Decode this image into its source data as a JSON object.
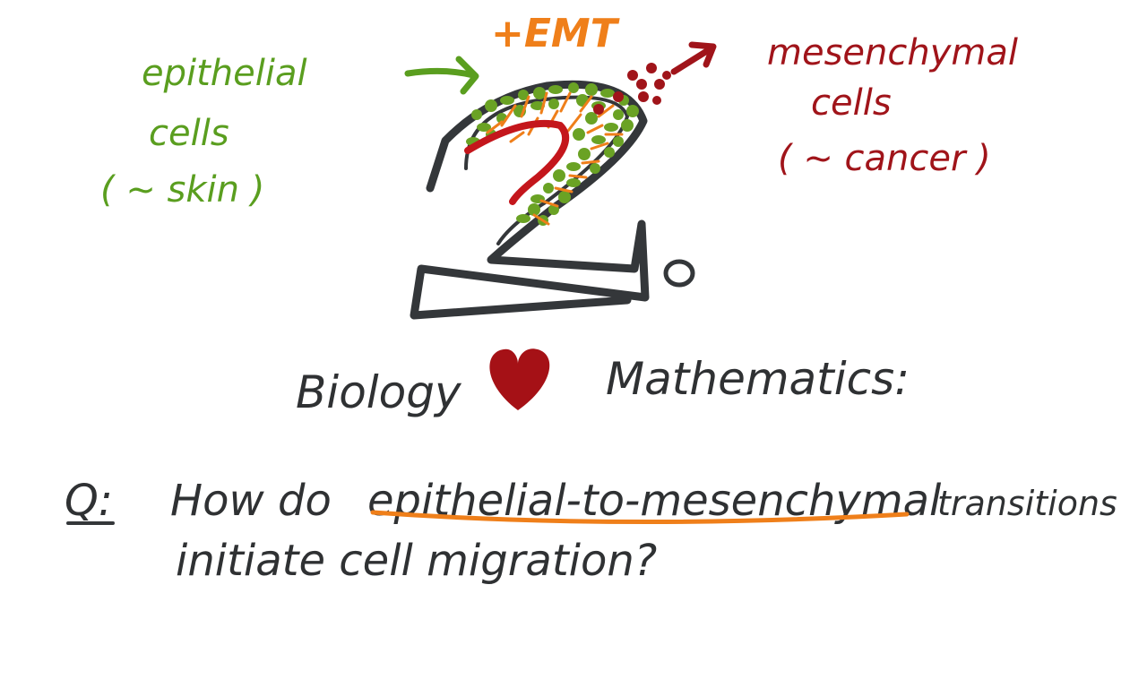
{
  "labels": {
    "emt": "+EMT",
    "epithelial_line1": "epithelial",
    "epithelial_line2": "cells",
    "epithelial_line3": "( ~ skin )",
    "mesenchymal_line1": "mesenchymal",
    "mesenchymal_line2": "cells",
    "mesenchymal_line3": "( ~  cancer )",
    "small_zero": "o"
  },
  "tagline": {
    "left": "Biology",
    "right": "Mathematics:",
    "heart_icon": "heart-icon"
  },
  "question": {
    "prefix": "Q:",
    "line1_before": "How do",
    "line1_highlight": "epithelial-to-mesenchymal",
    "line1_after": "transitions",
    "line2": "initiate   cell  migration?"
  },
  "colors": {
    "epithelial_green": "#5a9e1f",
    "emt_orange": "#ef7f1a",
    "mesenchymal_red": "#a0141a",
    "ink_dark": "#2f3133",
    "dot_green": "#6aa224",
    "heart_red": "#a51116"
  }
}
